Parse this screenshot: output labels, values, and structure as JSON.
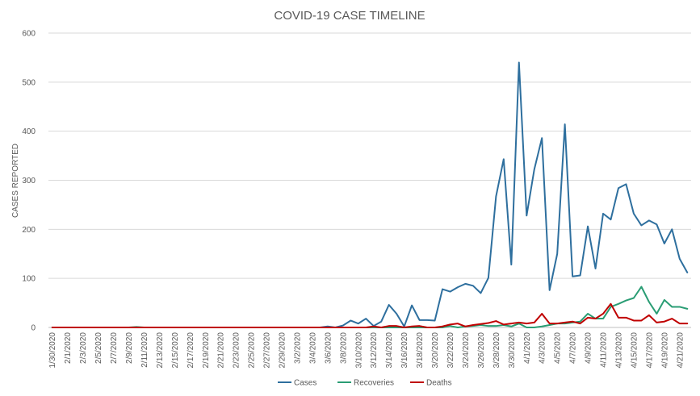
{
  "chart_data": {
    "type": "line",
    "title": "COVID-19 CASE TIMELINE",
    "xlabel": "",
    "ylabel": "CASES REPORTED",
    "ylim": [
      0,
      600
    ],
    "yticks": [
      0,
      100,
      200,
      300,
      400,
      500,
      600
    ],
    "grid": true,
    "legend_position": "bottom",
    "x": [
      "1/30/2020",
      "1/31/2020",
      "2/1/2020",
      "2/2/2020",
      "2/3/2020",
      "2/4/2020",
      "2/5/2020",
      "2/6/2020",
      "2/7/2020",
      "2/8/2020",
      "2/9/2020",
      "2/10/2020",
      "2/11/2020",
      "2/12/2020",
      "2/13/2020",
      "2/14/2020",
      "2/15/2020",
      "2/16/2020",
      "2/17/2020",
      "2/18/2020",
      "2/19/2020",
      "2/20/2020",
      "2/21/2020",
      "2/22/2020",
      "2/23/2020",
      "2/24/2020",
      "2/25/2020",
      "2/26/2020",
      "2/27/2020",
      "2/28/2020",
      "2/29/2020",
      "3/1/2020",
      "3/2/2020",
      "3/3/2020",
      "3/4/2020",
      "3/5/2020",
      "3/6/2020",
      "3/7/2020",
      "3/8/2020",
      "3/9/2020",
      "3/10/2020",
      "3/11/2020",
      "3/12/2020",
      "3/13/2020",
      "3/14/2020",
      "3/15/2020",
      "3/16/2020",
      "3/17/2020",
      "3/18/2020",
      "3/19/2020",
      "3/20/2020",
      "3/21/2020",
      "3/22/2020",
      "3/23/2020",
      "3/24/2020",
      "3/25/2020",
      "3/26/2020",
      "3/27/2020",
      "3/28/2020",
      "3/29/2020",
      "3/30/2020",
      "3/31/2020",
      "4/1/2020",
      "4/2/2020",
      "4/3/2020",
      "4/4/2020",
      "4/5/2020",
      "4/6/2020",
      "4/7/2020",
      "4/8/2020",
      "4/9/2020",
      "4/10/2020",
      "4/11/2020",
      "4/12/2020",
      "4/13/2020",
      "4/14/2020",
      "4/15/2020",
      "4/16/2020",
      "4/17/2020",
      "4/18/2020",
      "4/19/2020",
      "4/20/2020",
      "4/21/2020",
      "4/22/2020"
    ],
    "x_tick_labels": [
      "1/30/2020",
      "2/1/2020",
      "2/3/2020",
      "2/5/2020",
      "2/7/2020",
      "2/9/2020",
      "2/11/2020",
      "2/13/2020",
      "2/15/2020",
      "2/17/2020",
      "2/19/2020",
      "2/21/2020",
      "2/23/2020",
      "2/25/2020",
      "2/27/2020",
      "2/29/2020",
      "3/2/2020",
      "3/4/2020",
      "3/6/2020",
      "3/8/2020",
      "3/10/2020",
      "3/12/2020",
      "3/14/2020",
      "3/16/2020",
      "3/18/2020",
      "3/20/2020",
      "3/22/2020",
      "3/24/2020",
      "3/26/2020",
      "3/28/2020",
      "3/30/2020",
      "4/1/2020",
      "4/3/2020",
      "4/5/2020",
      "4/7/2020",
      "4/9/2020",
      "4/11/2020",
      "4/13/2020",
      "4/15/2020",
      "4/17/2020",
      "4/19/2020",
      "4/21/2020"
    ],
    "series": [
      {
        "name": "Cases",
        "color": "#2e6f9e",
        "values": [
          0,
          0,
          0,
          0,
          0,
          0,
          0,
          0,
          0,
          0,
          0,
          0,
          0,
          0,
          0,
          0,
          0,
          0,
          0,
          0,
          0,
          0,
          0,
          0,
          0,
          0,
          0,
          0,
          0,
          0,
          0,
          0,
          0,
          0,
          0,
          0,
          2,
          0,
          4,
          14,
          8,
          18,
          3,
          12,
          46,
          28,
          2,
          45,
          15,
          15,
          14,
          78,
          73,
          82,
          89,
          85,
          70,
          101,
          267,
          343,
          128,
          540,
          228,
          322,
          386,
          76,
          150,
          414,
          104,
          106,
          206,
          120,
          232,
          220,
          284,
          292,
          232,
          208,
          218,
          210,
          171,
          200,
          140,
          112
        ]
      },
      {
        "name": "Recoveries",
        "color": "#2a9d74",
        "values": [
          0,
          0,
          0,
          0,
          0,
          0,
          0,
          0,
          0,
          0,
          0,
          1,
          0,
          0,
          0,
          0,
          0,
          0,
          0,
          0,
          0,
          0,
          0,
          0,
          0,
          0,
          0,
          0,
          0,
          0,
          0,
          0,
          0,
          0,
          0,
          0,
          0,
          0,
          0,
          0,
          0,
          0,
          0,
          0,
          0,
          0,
          0,
          0,
          0,
          0,
          0,
          0,
          3,
          0,
          2,
          3,
          5,
          3,
          3,
          5,
          2,
          8,
          0,
          0,
          2,
          5,
          8,
          8,
          10,
          12,
          28,
          18,
          18,
          42,
          48,
          55,
          60,
          83,
          52,
          28,
          56,
          42,
          42,
          38
        ]
      },
      {
        "name": "Deaths",
        "color": "#c00000",
        "values": [
          0,
          0,
          0,
          0,
          0,
          0,
          0,
          0,
          0,
          0,
          0,
          0,
          0,
          0,
          0,
          0,
          0,
          0,
          0,
          0,
          0,
          0,
          0,
          0,
          0,
          0,
          0,
          0,
          0,
          0,
          0,
          0,
          0,
          0,
          0,
          0,
          0,
          0,
          0,
          0,
          0,
          0,
          2,
          0,
          3,
          3,
          0,
          2,
          3,
          0,
          0,
          2,
          6,
          8,
          2,
          5,
          7,
          9,
          13,
          6,
          8,
          10,
          8,
          10,
          28,
          8,
          8,
          10,
          12,
          8,
          20,
          18,
          28,
          48,
          20,
          20,
          14,
          14,
          25,
          10,
          12,
          18,
          8,
          8
        ]
      }
    ]
  }
}
